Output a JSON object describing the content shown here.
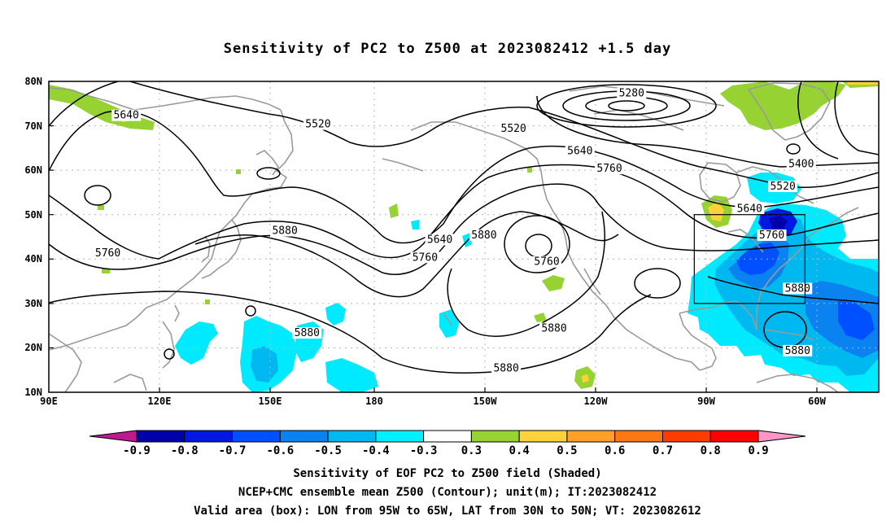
{
  "title": "Sensitivity of PC2 to Z500 at 2023082412 +1.5 day",
  "lat_labels": [
    "80N",
    "70N",
    "60N",
    "50N",
    "40N",
    "30N",
    "20N",
    "10N"
  ],
  "lon_labels": [
    "90E",
    "120E",
    "150E",
    "180",
    "150W",
    "120W",
    "90W",
    "60W"
  ],
  "contour_labels": [
    {
      "text": "5280",
      "lon": -112,
      "lat": 77
    },
    {
      "text": "5520",
      "lon": 163,
      "lat": 70
    },
    {
      "text": "5520",
      "lon": -144,
      "lat": 69
    },
    {
      "text": "5640",
      "lon": 111,
      "lat": 72
    },
    {
      "text": "5640",
      "lon": -126,
      "lat": 64
    },
    {
      "text": "5760",
      "lon": -118,
      "lat": 60
    },
    {
      "text": "5400",
      "lon": -66,
      "lat": 61
    },
    {
      "text": "5520",
      "lon": -71,
      "lat": 56
    },
    {
      "text": "5640",
      "lon": -80,
      "lat": 51
    },
    {
      "text": "5760",
      "lon": -74,
      "lat": 45
    },
    {
      "text": "5880",
      "lon": 154,
      "lat": 46
    },
    {
      "text": "5760",
      "lon": 106,
      "lat": 41
    },
    {
      "text": "5640",
      "lon": -164,
      "lat": 44
    },
    {
      "text": "5760",
      "lon": -168,
      "lat": 40
    },
    {
      "text": "5880",
      "lon": -152,
      "lat": 45
    },
    {
      "text": "5760",
      "lon": -135,
      "lat": 39
    },
    {
      "text": "5880",
      "lon": -67,
      "lat": 33
    },
    {
      "text": "5880",
      "lon": -133,
      "lat": 24
    },
    {
      "text": "5880",
      "lon": 160,
      "lat": 23
    },
    {
      "text": "5880",
      "lon": -67,
      "lat": 19
    },
    {
      "text": "5880",
      "lon": -146,
      "lat": 15
    }
  ],
  "colorbar": {
    "ticks": [
      "-0.9",
      "-0.8",
      "-0.7",
      "-0.6",
      "-0.5",
      "-0.4",
      "-0.3",
      "0.3",
      "0.4",
      "0.5",
      "0.6",
      "0.7",
      "0.8",
      "0.9"
    ],
    "colors": [
      "#0000a8",
      "#0018e0",
      "#0050ff",
      "#0a82f0",
      "#00b8f0",
      "#00f0ff",
      "#ffffff",
      "#96d232",
      "#ffd23c",
      "#ffa028",
      "#ff7814",
      "#ff3c00",
      "#ff0000"
    ],
    "low_color": "#c01890",
    "high_color": "#ff96c8"
  },
  "captions": [
    "Sensitivity of EOF PC2 to Z500 field (Shaded)",
    "NCEP+CMC ensemble mean Z500 (Contour); unit(m); IT:2023082412",
    "Valid area (box): LON from 95W to 65W, LAT from 30N to 50N; VT: 2023082612"
  ],
  "valid_box": {
    "lon_min": -95,
    "lon_max": -65,
    "lat_min": 30,
    "lat_max": 50
  },
  "map_extent": {
    "lon_min": 90,
    "lon_max": 315,
    "lat_min": 10,
    "lat_max": 80
  }
}
